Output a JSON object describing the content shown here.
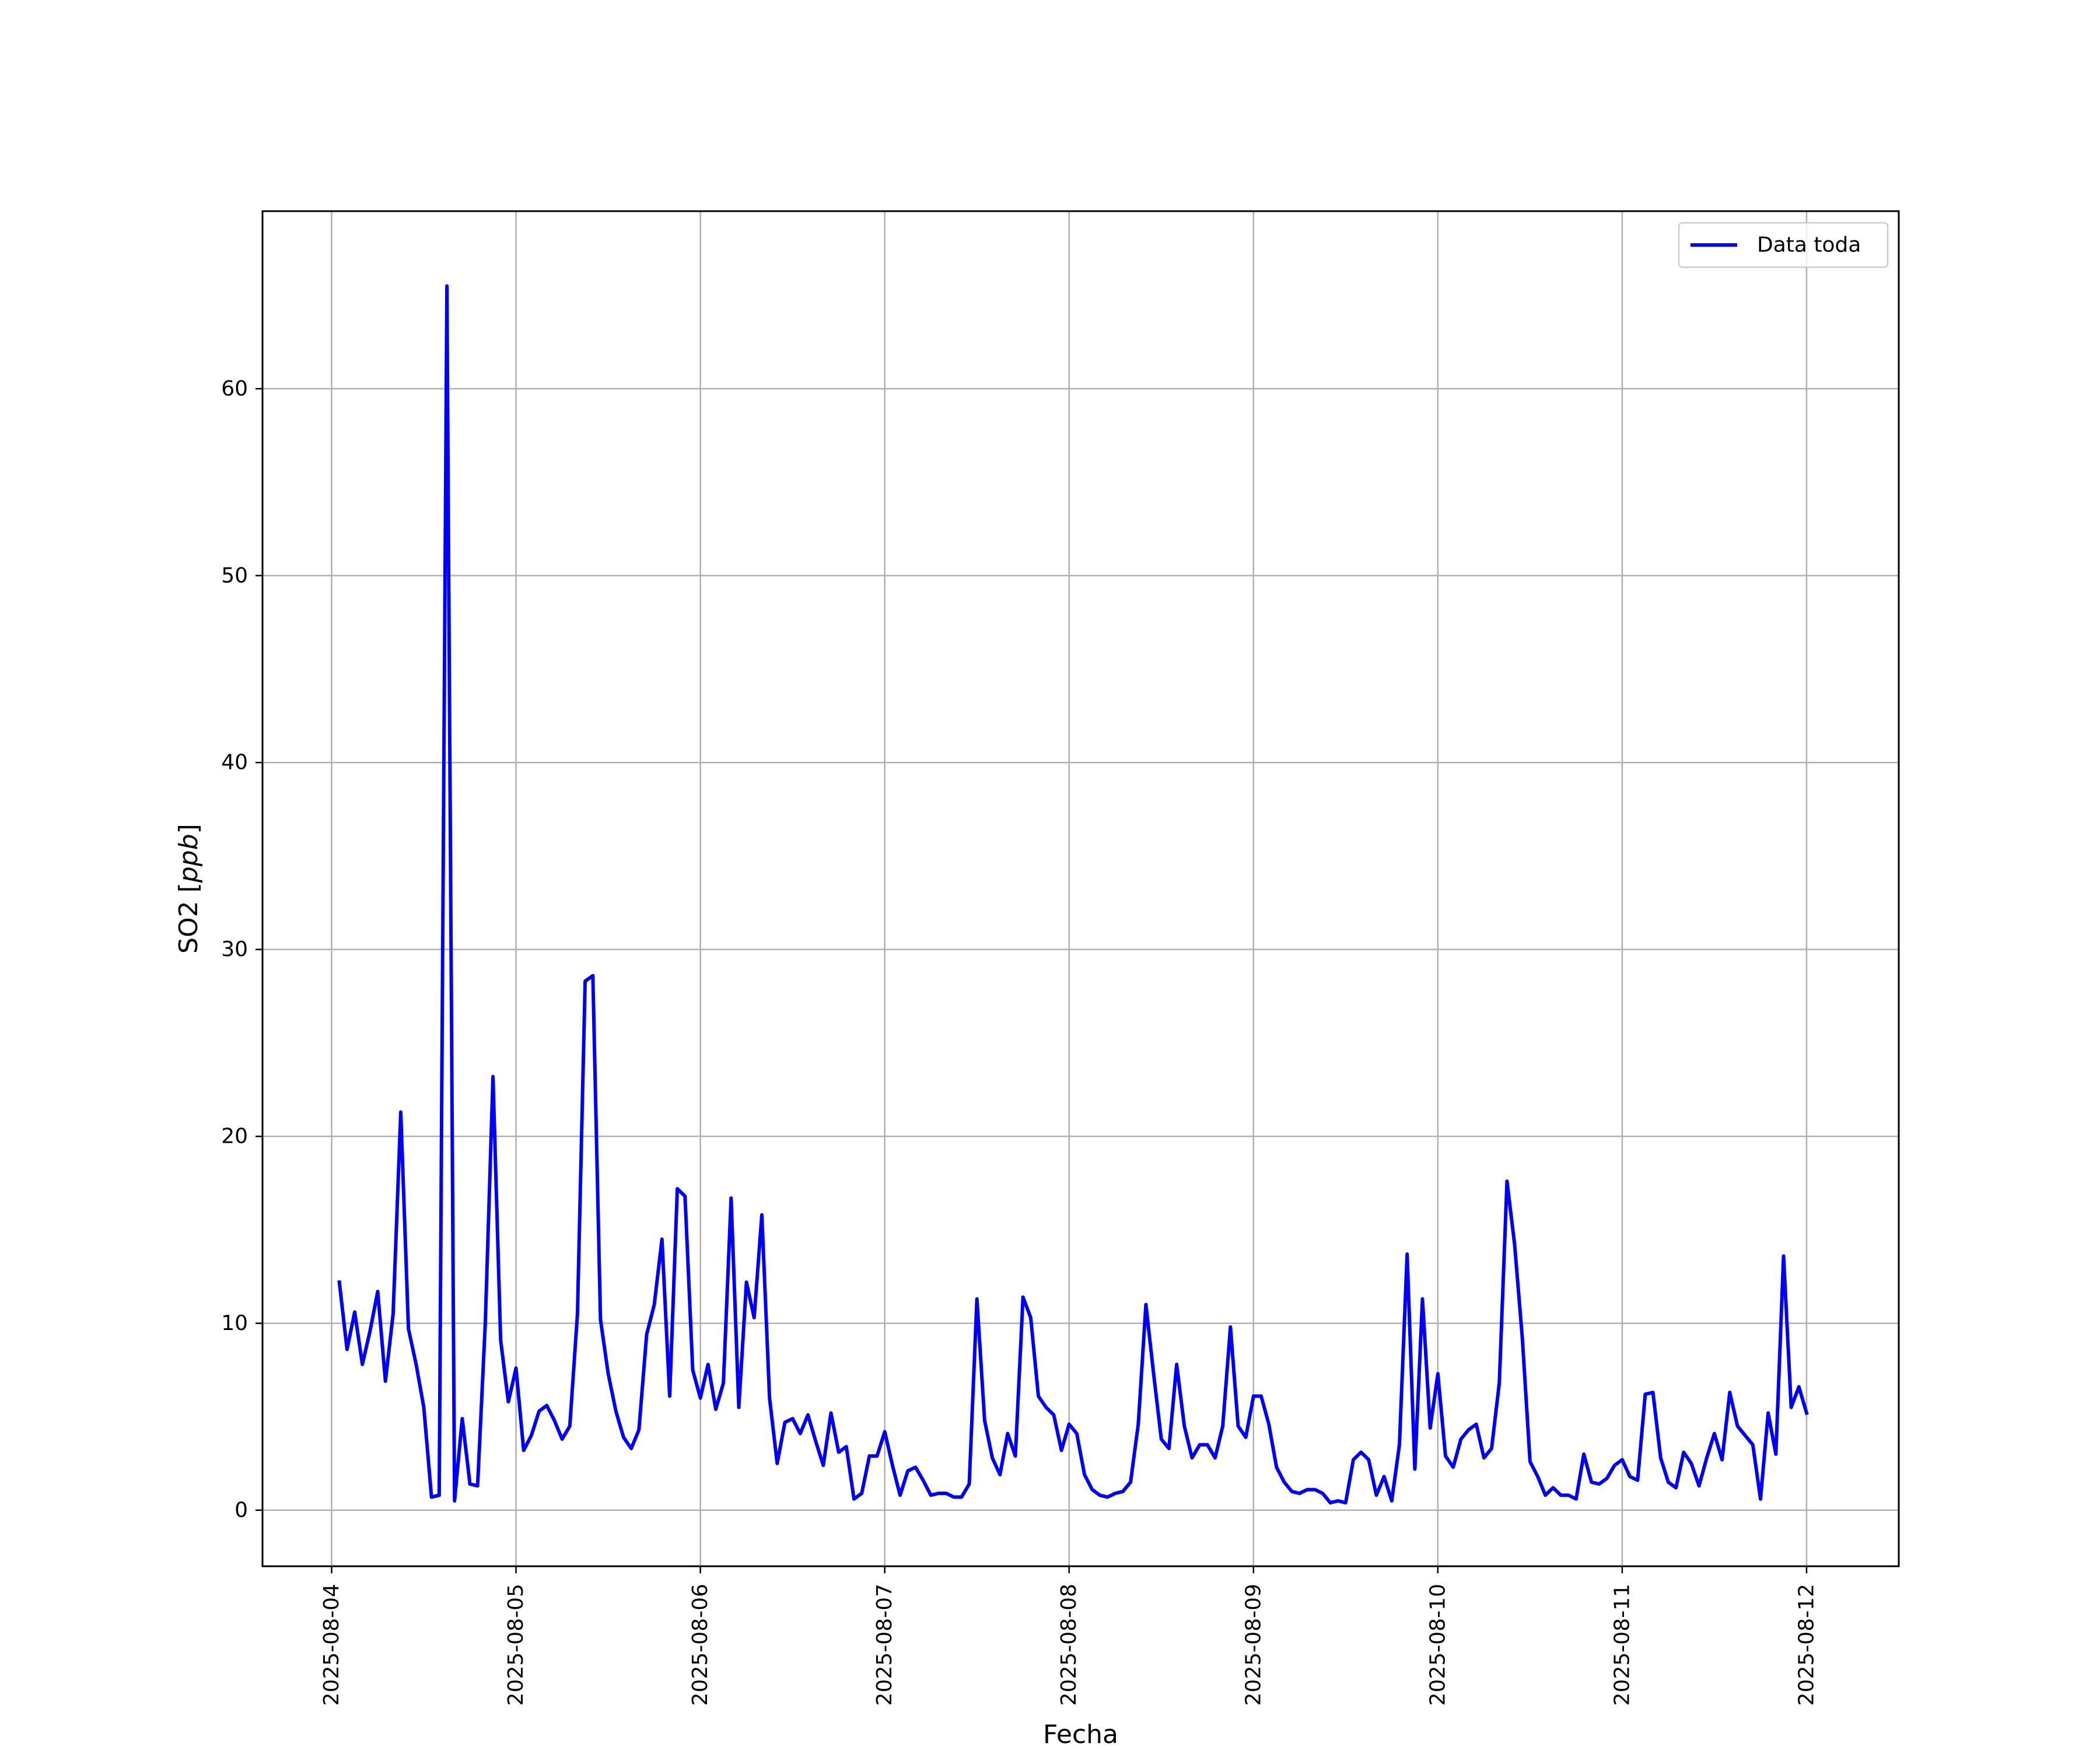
{
  "chart_data": {
    "type": "line",
    "xlabel": "Fecha",
    "ylabel": "SO2 [ppb]",
    "ylabel_prefix": "SO2 [",
    "ylabel_unit": "ppb",
    "ylabel_suffix": "]",
    "x_axis_kind": "date",
    "xlim": [
      "2025-08-03T15:00:00",
      "2025-08-12T12:00:00"
    ],
    "ylim": [
      -3,
      69.5
    ],
    "x_ticks": [
      "2025-08-04",
      "2025-08-05",
      "2025-08-06",
      "2025-08-07",
      "2025-08-08",
      "2025-08-09",
      "2025-08-10",
      "2025-08-11",
      "2025-08-12"
    ],
    "y_ticks": [
      0,
      10,
      20,
      30,
      40,
      50,
      60
    ],
    "y_tick_labels": [
      "0",
      "10",
      "20",
      "30",
      "40",
      "50",
      "60"
    ],
    "grid": true,
    "legend_position": "top-right",
    "series": [
      {
        "name": "Data toda",
        "color": "#0000ff",
        "start": "2025-08-04T01:00:00",
        "interval": "1 hour",
        "values": [
          12.2,
          8.6,
          10.6,
          7.8,
          9.6,
          11.7,
          6.9,
          10.5,
          21.3,
          9.7,
          7.8,
          5.5,
          0.7,
          0.8,
          65.5,
          0.5,
          4.9,
          1.4,
          1.3,
          10.0,
          23.2,
          9.1,
          5.8,
          7.6,
          3.2,
          4.0,
          5.3,
          5.6,
          4.8,
          3.8,
          4.5,
          10.5,
          28.3,
          28.6,
          10.2,
          7.3,
          5.3,
          3.9,
          3.3,
          4.3,
          9.4,
          11.0,
          14.5,
          6.1,
          17.2,
          16.8,
          7.5,
          6.0,
          7.8,
          5.4,
          6.8,
          16.7,
          5.5,
          12.2,
          10.3,
          15.8,
          6.0,
          2.5,
          4.7,
          4.9,
          4.1,
          5.1,
          3.7,
          2.4,
          5.2,
          3.1,
          3.4,
          0.6,
          0.9,
          2.9,
          2.9,
          4.2,
          2.4,
          0.8,
          2.1,
          2.3,
          1.6,
          0.8,
          0.9,
          0.9,
          0.7,
          0.7,
          1.4,
          11.3,
          4.8,
          2.8,
          1.9,
          4.1,
          2.9,
          11.4,
          10.3,
          6.1,
          5.5,
          5.1,
          3.2,
          4.6,
          4.1,
          1.9,
          1.1,
          0.8,
          0.7,
          0.9,
          1.0,
          1.5,
          4.6,
          11.0,
          7.3,
          3.8,
          3.3,
          7.8,
          4.5,
          2.8,
          3.5,
          3.5,
          2.8,
          4.5,
          9.8,
          4.5,
          3.9,
          6.1,
          6.1,
          4.6,
          2.3,
          1.5,
          1.0,
          0.9,
          1.1,
          1.1,
          0.9,
          0.4,
          0.5,
          0.4,
          2.7,
          3.1,
          2.7,
          0.8,
          1.8,
          0.5,
          3.5,
          13.7,
          2.2,
          11.3,
          4.4,
          7.3,
          2.9,
          2.3,
          3.8,
          4.3,
          4.6,
          2.8,
          3.3,
          6.8,
          17.6,
          14.2,
          9.2,
          2.6,
          1.8,
          0.8,
          1.2,
          0.8,
          0.8,
          0.6,
          3.0,
          1.5,
          1.4,
          1.7,
          2.4,
          2.7,
          1.8,
          1.6,
          6.2,
          6.3,
          2.8,
          1.5,
          1.2,
          3.1,
          2.5,
          1.3,
          2.8,
          4.1,
          2.7,
          6.3,
          4.5,
          4.0,
          3.5,
          0.6,
          5.2,
          3.0,
          13.6,
          5.5,
          6.6,
          5.2
        ]
      }
    ]
  }
}
